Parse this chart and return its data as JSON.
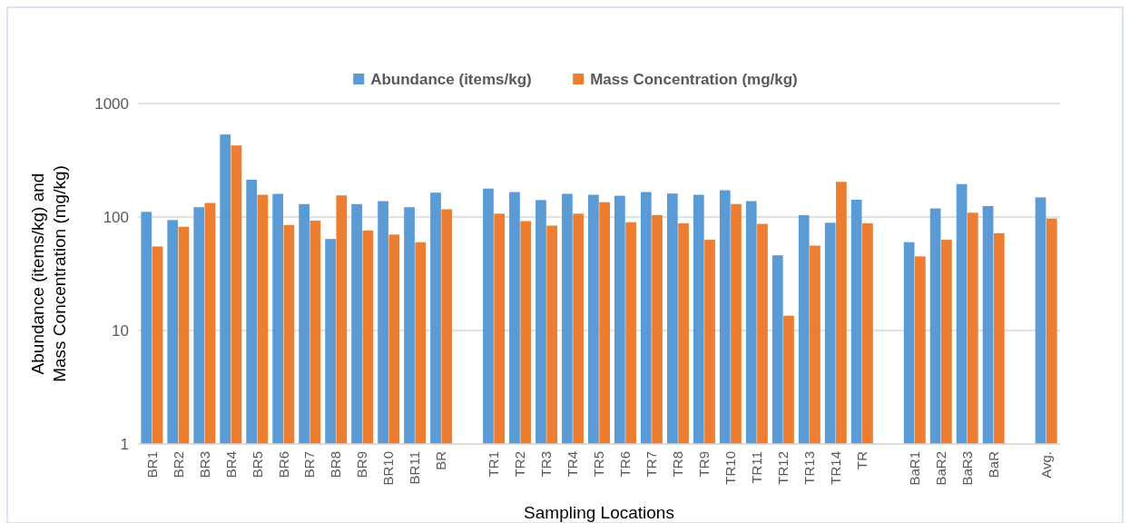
{
  "chart_data": {
    "type": "bar",
    "xlabel": "Sampling Locations",
    "ylabel": "Abundance (items/kg) and\nMass Concentration (mg/kg)",
    "categories": [
      "BR1",
      "BR2",
      "BR3",
      "BR4",
      "BR5",
      "BR6",
      "BR7",
      "BR8",
      "BR9",
      "BR10",
      "BR11",
      "BR",
      null,
      "TR1",
      "TR2",
      "TR3",
      "TR4",
      "TR5",
      "TR6",
      "TR7",
      "TR8",
      "TR9",
      "TR10",
      "TR11",
      "TR12",
      "TR13",
      "TR14",
      "TR",
      null,
      "BaR1",
      "BaR2",
      "BaR3",
      "BaR",
      null,
      "Avg."
    ],
    "series": [
      {
        "name": "Abundance (items/kg)",
        "color": "#5b9bd5",
        "values": [
          111,
          94,
          122,
          533,
          213,
          160,
          130,
          64,
          130,
          138,
          122,
          164,
          null,
          178,
          166,
          141,
          160,
          157,
          154,
          166,
          161,
          157,
          172,
          138,
          46,
          104,
          89,
          142,
          null,
          60,
          119,
          195,
          125,
          null,
          149
        ]
      },
      {
        "name": "Mass Concentration (mg/kg)",
        "color": "#ed7d31",
        "values": [
          55,
          82,
          133,
          427,
          157,
          85,
          93,
          155,
          76,
          70,
          60,
          117,
          null,
          107,
          92,
          84,
          107,
          135,
          90,
          104,
          88,
          63,
          130,
          87,
          13.5,
          56,
          204,
          88,
          null,
          45,
          63,
          109,
          72,
          null,
          97
        ]
      }
    ],
    "log": true,
    "ylim": [
      1,
      1000
    ],
    "yticks": [
      1,
      10,
      100,
      1000
    ],
    "grid": "y",
    "legend": "top"
  }
}
